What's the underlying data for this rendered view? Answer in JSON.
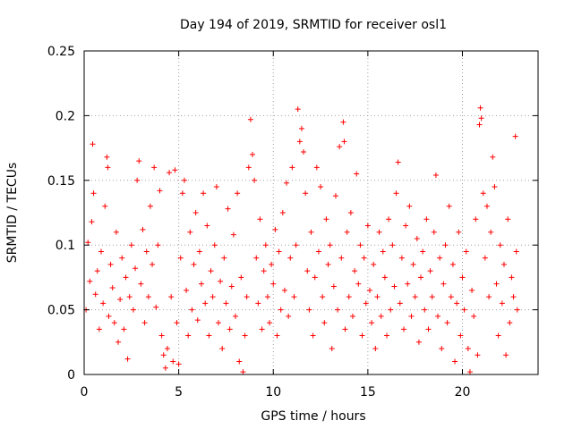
{
  "chart_data": {
    "type": "scatter",
    "title": "Day 194 of 2019, SRMTID for receiver osl1",
    "xlabel": "GPS time / hours",
    "ylabel": "SRMTID / TECUs",
    "xlim": [
      0,
      24
    ],
    "ylim": [
      0,
      0.25
    ],
    "x_ticks": [
      "0",
      "5",
      "10",
      "15",
      "20"
    ],
    "y_ticks": [
      "0",
      "0.05",
      "0.1",
      "0.15",
      "0.2",
      "0.25"
    ],
    "grid": true,
    "marker": "+",
    "marker_color": "#ff0000",
    "series": [
      {
        "points": [
          [
            0.1,
            0.05
          ],
          [
            0.2,
            0.102
          ],
          [
            0.3,
            0.072
          ],
          [
            0.4,
            0.118
          ],
          [
            0.45,
            0.178
          ],
          [
            0.5,
            0.14
          ],
          [
            0.6,
            0.062
          ],
          [
            0.7,
            0.08
          ],
          [
            0.8,
            0.035
          ],
          [
            0.9,
            0.095
          ],
          [
            1.0,
            0.055
          ],
          [
            1.1,
            0.13
          ],
          [
            1.2,
            0.168
          ],
          [
            1.25,
            0.16
          ],
          [
            1.3,
            0.045
          ],
          [
            1.4,
            0.085
          ],
          [
            1.5,
            0.067
          ],
          [
            1.6,
            0.04
          ],
          [
            1.7,
            0.11
          ],
          [
            1.8,
            0.025
          ],
          [
            1.9,
            0.058
          ],
          [
            2.0,
            0.09
          ],
          [
            2.1,
            0.035
          ],
          [
            2.2,
            0.075
          ],
          [
            2.3,
            0.012
          ],
          [
            2.4,
            0.06
          ],
          [
            2.5,
            0.1
          ],
          [
            2.6,
            0.05
          ],
          [
            2.7,
            0.082
          ],
          [
            2.8,
            0.15
          ],
          [
            2.9,
            0.165
          ],
          [
            3.0,
            0.07
          ],
          [
            3.1,
            0.112
          ],
          [
            3.2,
            0.04
          ],
          [
            3.3,
            0.095
          ],
          [
            3.4,
            0.06
          ],
          [
            3.5,
            0.13
          ],
          [
            3.6,
            0.085
          ],
          [
            3.7,
            0.16
          ],
          [
            3.8,
            0.052
          ],
          [
            3.9,
            0.1
          ],
          [
            4.0,
            0.142
          ],
          [
            4.1,
            0.03
          ],
          [
            4.2,
            0.015
          ],
          [
            4.3,
            0.005
          ],
          [
            4.4,
            0.02
          ],
          [
            4.5,
            0.156
          ],
          [
            4.6,
            0.06
          ],
          [
            4.7,
            0.01
          ],
          [
            4.8,
            0.158
          ],
          [
            4.9,
            0.04
          ],
          [
            5.0,
            0.008
          ],
          [
            5.1,
            0.09
          ],
          [
            5.2,
            0.14
          ],
          [
            5.3,
            0.15
          ],
          [
            5.4,
            0.065
          ],
          [
            5.5,
            0.03
          ],
          [
            5.6,
            0.11
          ],
          [
            5.7,
            0.05
          ],
          [
            5.8,
            0.085
          ],
          [
            5.9,
            0.125
          ],
          [
            6.0,
            0.042
          ],
          [
            6.1,
            0.095
          ],
          [
            6.2,
            0.07
          ],
          [
            6.3,
            0.14
          ],
          [
            6.4,
            0.055
          ],
          [
            6.5,
            0.115
          ],
          [
            6.6,
            0.03
          ],
          [
            6.7,
            0.08
          ],
          [
            6.8,
            0.06
          ],
          [
            6.9,
            0.1
          ],
          [
            7.0,
            0.145
          ],
          [
            7.1,
            0.04
          ],
          [
            7.2,
            0.072
          ],
          [
            7.3,
            0.02
          ],
          [
            7.4,
            0.09
          ],
          [
            7.5,
            0.055
          ],
          [
            7.6,
            0.128
          ],
          [
            7.7,
            0.035
          ],
          [
            7.8,
            0.068
          ],
          [
            7.9,
            0.108
          ],
          [
            8.0,
            0.045
          ],
          [
            8.1,
            0.14
          ],
          [
            8.2,
            0.01
          ],
          [
            8.3,
            0.075
          ],
          [
            8.4,
            0.002
          ],
          [
            8.5,
            0.03
          ],
          [
            8.6,
            0.06
          ],
          [
            8.7,
            0.16
          ],
          [
            8.8,
            0.197
          ],
          [
            8.9,
            0.17
          ],
          [
            9.0,
            0.15
          ],
          [
            9.1,
            0.09
          ],
          [
            9.2,
            0.055
          ],
          [
            9.3,
            0.12
          ],
          [
            9.4,
            0.035
          ],
          [
            9.5,
            0.08
          ],
          [
            9.6,
            0.1
          ],
          [
            9.7,
            0.06
          ],
          [
            9.8,
            0.04
          ],
          [
            9.9,
            0.085
          ],
          [
            10.0,
            0.07
          ],
          [
            10.1,
            0.112
          ],
          [
            10.2,
            0.03
          ],
          [
            10.3,
            0.095
          ],
          [
            10.4,
            0.05
          ],
          [
            10.5,
            0.125
          ],
          [
            10.6,
            0.065
          ],
          [
            10.7,
            0.148
          ],
          [
            10.8,
            0.045
          ],
          [
            10.9,
            0.09
          ],
          [
            11.0,
            0.16
          ],
          [
            11.1,
            0.06
          ],
          [
            11.2,
            0.1
          ],
          [
            11.3,
            0.205
          ],
          [
            11.4,
            0.18
          ],
          [
            11.5,
            0.19
          ],
          [
            11.6,
            0.172
          ],
          [
            11.7,
            0.14
          ],
          [
            11.8,
            0.08
          ],
          [
            11.9,
            0.05
          ],
          [
            12.0,
            0.11
          ],
          [
            12.1,
            0.03
          ],
          [
            12.2,
            0.075
          ],
          [
            12.3,
            0.16
          ],
          [
            12.4,
            0.095
          ],
          [
            12.5,
            0.145
          ],
          [
            12.6,
            0.06
          ],
          [
            12.7,
            0.04
          ],
          [
            12.8,
            0.12
          ],
          [
            12.9,
            0.085
          ],
          [
            13.0,
            0.1
          ],
          [
            13.1,
            0.02
          ],
          [
            13.2,
            0.068
          ],
          [
            13.3,
            0.138
          ],
          [
            13.4,
            0.05
          ],
          [
            13.5,
            0.176
          ],
          [
            13.6,
            0.09
          ],
          [
            13.7,
            0.195
          ],
          [
            13.75,
            0.18
          ],
          [
            13.8,
            0.035
          ],
          [
            13.9,
            0.11
          ],
          [
            14.0,
            0.06
          ],
          [
            14.1,
            0.125
          ],
          [
            14.2,
            0.045
          ],
          [
            14.3,
            0.08
          ],
          [
            14.4,
            0.155
          ],
          [
            14.5,
            0.07
          ],
          [
            14.6,
            0.1
          ],
          [
            14.7,
            0.03
          ],
          [
            14.8,
            0.09
          ],
          [
            14.9,
            0.055
          ],
          [
            15.0,
            0.115
          ],
          [
            15.1,
            0.065
          ],
          [
            15.2,
            0.04
          ],
          [
            15.3,
            0.085
          ],
          [
            15.4,
            0.02
          ],
          [
            15.5,
            0.06
          ],
          [
            15.6,
            0.11
          ],
          [
            15.7,
            0.045
          ],
          [
            15.8,
            0.095
          ],
          [
            15.9,
            0.075
          ],
          [
            16.0,
            0.03
          ],
          [
            16.1,
            0.12
          ],
          [
            16.2,
            0.05
          ],
          [
            16.3,
            0.1
          ],
          [
            16.4,
            0.068
          ],
          [
            16.5,
            0.14
          ],
          [
            16.6,
            0.164
          ],
          [
            16.7,
            0.055
          ],
          [
            16.8,
            0.09
          ],
          [
            16.9,
            0.035
          ],
          [
            17.0,
            0.115
          ],
          [
            17.1,
            0.07
          ],
          [
            17.2,
            0.13
          ],
          [
            17.3,
            0.045
          ],
          [
            17.4,
            0.085
          ],
          [
            17.5,
            0.06
          ],
          [
            17.6,
            0.105
          ],
          [
            17.7,
            0.025
          ],
          [
            17.8,
            0.075
          ],
          [
            17.9,
            0.095
          ],
          [
            18.0,
            0.05
          ],
          [
            18.1,
            0.12
          ],
          [
            18.2,
            0.035
          ],
          [
            18.3,
            0.08
          ],
          [
            18.4,
            0.06
          ],
          [
            18.5,
            0.11
          ],
          [
            18.6,
            0.154
          ],
          [
            18.7,
            0.045
          ],
          [
            18.8,
            0.09
          ],
          [
            18.9,
            0.02
          ],
          [
            19.0,
            0.07
          ],
          [
            19.1,
            0.1
          ],
          [
            19.2,
            0.04
          ],
          [
            19.3,
            0.13
          ],
          [
            19.4,
            0.06
          ],
          [
            19.5,
            0.085
          ],
          [
            19.6,
            0.01
          ],
          [
            19.7,
            0.055
          ],
          [
            19.8,
            0.11
          ],
          [
            19.9,
            0.03
          ],
          [
            20.0,
            0.075
          ],
          [
            20.1,
            0.05
          ],
          [
            20.2,
            0.095
          ],
          [
            20.3,
            0.02
          ],
          [
            20.4,
            0.002
          ],
          [
            20.5,
            0.065
          ],
          [
            20.6,
            0.045
          ],
          [
            20.7,
            0.12
          ],
          [
            20.8,
            0.015
          ],
          [
            20.9,
            0.193
          ],
          [
            20.95,
            0.206
          ],
          [
            21.0,
            0.198
          ],
          [
            21.1,
            0.14
          ],
          [
            21.2,
            0.09
          ],
          [
            21.3,
            0.13
          ],
          [
            21.4,
            0.06
          ],
          [
            21.5,
            0.11
          ],
          [
            21.6,
            0.168
          ],
          [
            21.7,
            0.145
          ],
          [
            21.8,
            0.07
          ],
          [
            21.9,
            0.03
          ],
          [
            22.0,
            0.1
          ],
          [
            22.1,
            0.055
          ],
          [
            22.2,
            0.085
          ],
          [
            22.3,
            0.015
          ],
          [
            22.4,
            0.12
          ],
          [
            22.5,
            0.04
          ],
          [
            22.6,
            0.075
          ],
          [
            22.7,
            0.06
          ],
          [
            22.8,
            0.184
          ],
          [
            22.85,
            0.095
          ],
          [
            22.9,
            0.05
          ]
        ]
      }
    ]
  }
}
